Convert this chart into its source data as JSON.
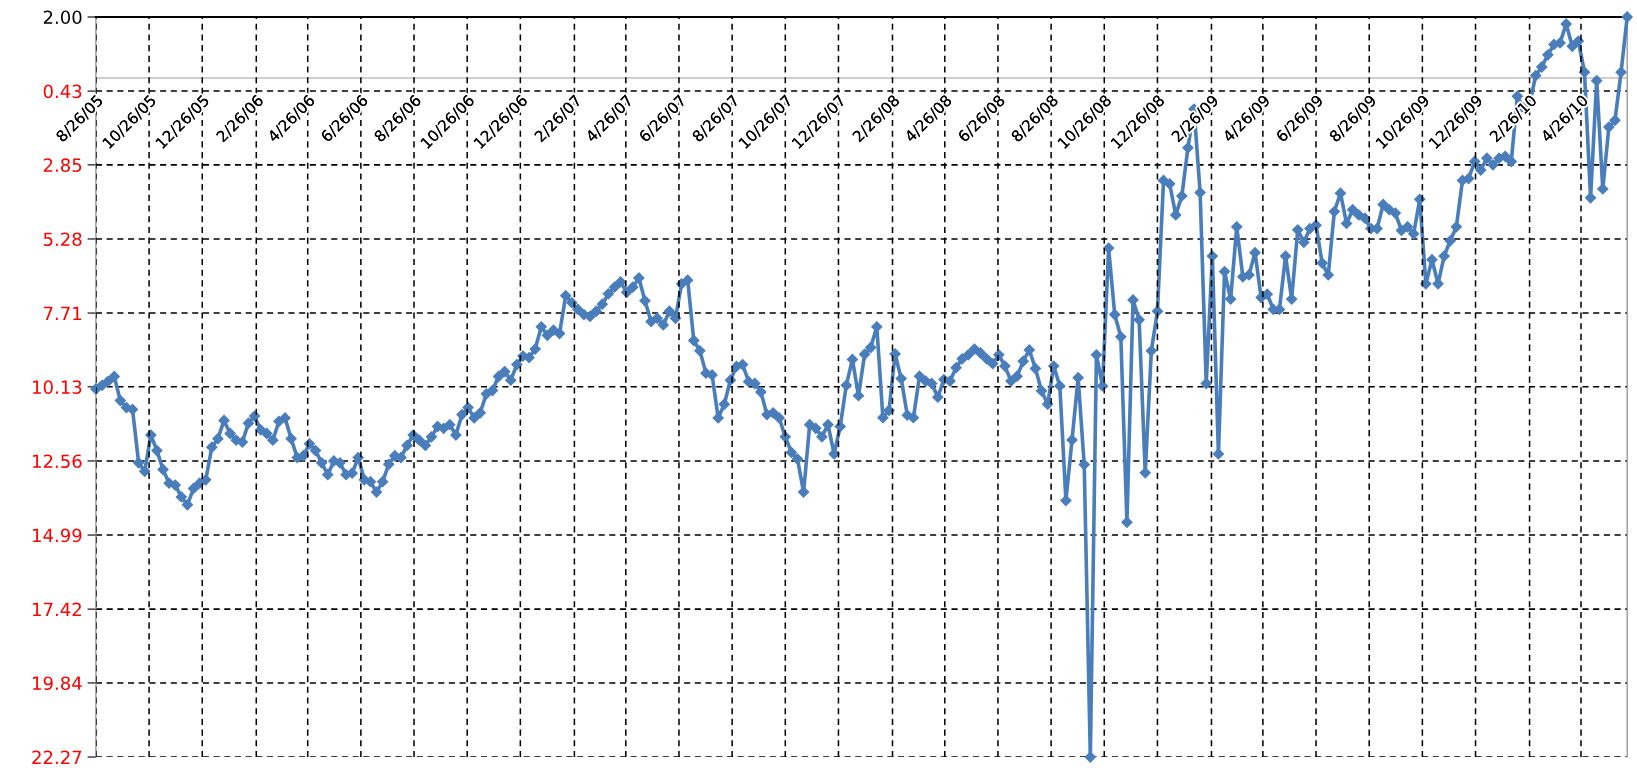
{
  "chart_data": {
    "type": "line",
    "xlim": [
      "2005-08-26",
      "2010-06-18"
    ],
    "xticks": [
      {
        "value": "2005-08-26",
        "label": "8/26/05"
      },
      {
        "value": "2005-10-26",
        "label": "10/26/05"
      },
      {
        "value": "2005-12-26",
        "label": "12/26/05"
      },
      {
        "value": "2006-02-26",
        "label": "2/26/06"
      },
      {
        "value": "2006-04-26",
        "label": "4/26/06"
      },
      {
        "value": "2006-06-26",
        "label": "6/26/06"
      },
      {
        "value": "2006-08-26",
        "label": "8/26/06"
      },
      {
        "value": "2006-10-26",
        "label": "10/26/06"
      },
      {
        "value": "2006-12-26",
        "label": "12/26/06"
      },
      {
        "value": "2007-02-26",
        "label": "2/26/07"
      },
      {
        "value": "2007-04-26",
        "label": "4/26/07"
      },
      {
        "value": "2007-06-26",
        "label": "6/26/07"
      },
      {
        "value": "2007-08-26",
        "label": "8/26/07"
      },
      {
        "value": "2007-10-26",
        "label": "10/26/07"
      },
      {
        "value": "2007-12-26",
        "label": "12/26/07"
      },
      {
        "value": "2008-02-26",
        "label": "2/26/08"
      },
      {
        "value": "2008-04-26",
        "label": "4/26/08"
      },
      {
        "value": "2008-06-26",
        "label": "6/26/08"
      },
      {
        "value": "2008-08-26",
        "label": "8/26/08"
      },
      {
        "value": "2008-10-26",
        "label": "10/26/08"
      },
      {
        "value": "2008-12-26",
        "label": "12/26/08"
      },
      {
        "value": "2009-02-26",
        "label": "2/26/09"
      },
      {
        "value": "2009-04-26",
        "label": "4/26/09"
      },
      {
        "value": "2009-06-26",
        "label": "6/26/09"
      },
      {
        "value": "2009-08-26",
        "label": "8/26/09"
      },
      {
        "value": "2009-10-26",
        "label": "10/26/09"
      },
      {
        "value": "2009-12-26",
        "label": "12/26/09"
      },
      {
        "value": "2010-02-26",
        "label": "2/26/10"
      },
      {
        "value": "2010-04-26",
        "label": "4/26/10"
      }
    ],
    "ylim": [
      -22.27,
      2.0
    ],
    "yticks": [
      {
        "value": 2.0,
        "label": "2.00"
      },
      {
        "value": -0.43,
        "label": "0.43"
      },
      {
        "value": -2.85,
        "label": "2.85"
      },
      {
        "value": -5.28,
        "label": "5.28"
      },
      {
        "value": -7.71,
        "label": "7.71"
      },
      {
        "value": -10.13,
        "label": "10.13"
      },
      {
        "value": -12.56,
        "label": "12.56"
      },
      {
        "value": -14.99,
        "label": "14.99"
      },
      {
        "value": -17.42,
        "label": "17.42"
      },
      {
        "value": -19.84,
        "label": "19.84"
      },
      {
        "value": -22.27,
        "label": "22.27"
      }
    ],
    "grid": true,
    "marker": "diamond",
    "line_style": "solid",
    "series": [
      {
        "color": "#4a7ebb",
        "x": [
          "2005-08-26",
          "2005-09-02",
          "2005-09-09",
          "2005-09-16",
          "2005-09-23",
          "2005-09-30",
          "2005-10-07",
          "2005-10-14",
          "2005-10-21",
          "2005-10-28",
          "2005-11-04",
          "2005-11-11",
          "2005-11-18",
          "2005-11-25",
          "2005-12-02",
          "2005-12-09",
          "2005-12-16",
          "2005-12-23",
          "2005-12-30",
          "2006-01-06",
          "2006-01-13",
          "2006-01-20",
          "2006-01-27",
          "2006-02-03",
          "2006-02-10",
          "2006-02-17",
          "2006-02-24",
          "2006-03-03",
          "2006-03-10",
          "2006-03-17",
          "2006-03-24",
          "2006-03-31",
          "2006-04-07",
          "2006-04-14",
          "2006-04-21",
          "2006-04-28",
          "2006-05-05",
          "2006-05-12",
          "2006-05-19",
          "2006-05-26",
          "2006-06-02",
          "2006-06-09",
          "2006-06-16",
          "2006-06-23",
          "2006-06-30",
          "2006-07-07",
          "2006-07-14",
          "2006-07-21",
          "2006-07-28",
          "2006-08-04",
          "2006-08-11",
          "2006-08-18",
          "2006-08-25",
          "2006-09-01",
          "2006-09-08",
          "2006-09-15",
          "2006-09-22",
          "2006-09-29",
          "2006-10-06",
          "2006-10-13",
          "2006-10-20",
          "2006-10-27",
          "2006-11-03",
          "2006-11-10",
          "2006-11-17",
          "2006-11-24",
          "2006-12-01",
          "2006-12-08",
          "2006-12-15",
          "2006-12-22",
          "2006-12-29",
          "2007-01-05",
          "2007-01-12",
          "2007-01-19",
          "2007-01-26",
          "2007-02-02",
          "2007-02-09",
          "2007-02-16",
          "2007-02-23",
          "2007-03-02",
          "2007-03-09",
          "2007-03-16",
          "2007-03-23",
          "2007-03-30",
          "2007-04-06",
          "2007-04-13",
          "2007-04-20",
          "2007-04-27",
          "2007-05-04",
          "2007-05-11",
          "2007-05-18",
          "2007-05-25",
          "2007-06-01",
          "2007-06-08",
          "2007-06-15",
          "2007-06-22",
          "2007-06-29",
          "2007-07-06",
          "2007-07-13",
          "2007-07-20",
          "2007-07-27",
          "2007-08-03",
          "2007-08-10",
          "2007-08-17",
          "2007-08-24",
          "2007-08-31",
          "2007-09-07",
          "2007-09-14",
          "2007-09-21",
          "2007-09-28",
          "2007-10-05",
          "2007-10-12",
          "2007-10-19",
          "2007-10-26",
          "2007-11-02",
          "2007-11-09",
          "2007-11-16",
          "2007-11-23",
          "2007-11-30",
          "2007-12-07",
          "2007-12-14",
          "2007-12-21",
          "2007-12-28",
          "2008-01-04",
          "2008-01-11",
          "2008-01-18",
          "2008-01-25",
          "2008-02-01",
          "2008-02-08",
          "2008-02-15",
          "2008-02-22",
          "2008-02-29",
          "2008-03-07",
          "2008-03-14",
          "2008-03-21",
          "2008-03-28",
          "2008-04-04",
          "2008-04-11",
          "2008-04-18",
          "2008-04-25",
          "2008-05-02",
          "2008-05-09",
          "2008-05-16",
          "2008-05-23",
          "2008-05-30",
          "2008-06-06",
          "2008-06-13",
          "2008-06-20",
          "2008-06-27",
          "2008-07-04",
          "2008-07-11",
          "2008-07-18",
          "2008-07-25",
          "2008-08-01",
          "2008-08-08",
          "2008-08-15",
          "2008-08-22",
          "2008-08-29",
          "2008-09-05",
          "2008-09-12",
          "2008-09-19",
          "2008-09-26",
          "2008-10-03",
          "2008-10-10",
          "2008-10-17",
          "2008-10-24",
          "2008-10-31",
          "2008-11-07",
          "2008-11-14",
          "2008-11-21",
          "2008-11-28",
          "2008-12-05",
          "2008-12-12",
          "2008-12-19",
          "2008-12-26",
          "2009-01-02",
          "2009-01-09",
          "2009-01-16",
          "2009-01-23",
          "2009-01-30",
          "2009-02-06",
          "2009-02-13",
          "2009-02-20",
          "2009-02-27",
          "2009-03-06",
          "2009-03-13",
          "2009-03-20",
          "2009-03-27",
          "2009-04-03",
          "2009-04-10",
          "2009-04-17",
          "2009-04-24",
          "2009-05-01",
          "2009-05-08",
          "2009-05-15",
          "2009-05-22",
          "2009-05-29",
          "2009-06-05",
          "2009-06-12",
          "2009-06-19",
          "2009-06-26",
          "2009-07-03",
          "2009-07-10",
          "2009-07-17",
          "2009-07-24",
          "2009-07-31",
          "2009-08-07",
          "2009-08-14",
          "2009-08-21",
          "2009-08-28",
          "2009-09-04",
          "2009-09-11",
          "2009-09-18",
          "2009-09-25",
          "2009-10-02",
          "2009-10-09",
          "2009-10-16",
          "2009-10-23",
          "2009-10-30",
          "2009-11-06",
          "2009-11-13",
          "2009-11-20",
          "2009-11-27",
          "2009-12-04",
          "2009-12-11",
          "2009-12-18",
          "2009-12-25",
          "2010-01-01",
          "2010-01-08",
          "2010-01-15",
          "2010-01-22",
          "2010-01-29",
          "2010-02-05",
          "2010-02-12",
          "2010-02-19",
          "2010-02-26",
          "2010-03-05",
          "2010-03-12",
          "2010-03-19",
          "2010-03-26",
          "2010-04-02",
          "2010-04-09",
          "2010-04-16",
          "2010-04-23",
          "2010-04-30",
          "2010-05-07",
          "2010-05-14",
          "2010-05-21",
          "2010-05-28",
          "2010-06-04",
          "2010-06-11",
          "2010-06-18"
        ],
        "values": [
          -10.2,
          -10.08,
          -9.95,
          -9.79,
          -10.58,
          -10.81,
          -10.87,
          -12.62,
          -12.9,
          -11.71,
          -12.22,
          -12.84,
          -13.29,
          -13.35,
          -13.74,
          -14.0,
          -13.46,
          -13.29,
          -13.18,
          -12.11,
          -11.83,
          -11.23,
          -11.66,
          -11.88,
          -11.94,
          -11.32,
          -11.09,
          -11.54,
          -11.66,
          -11.88,
          -11.26,
          -11.15,
          -11.83,
          -12.45,
          -12.39,
          -12.0,
          -12.22,
          -12.62,
          -13.01,
          -12.56,
          -12.62,
          -13.01,
          -12.96,
          -12.45,
          -13.18,
          -13.24,
          -13.58,
          -13.24,
          -12.67,
          -12.39,
          -12.45,
          -12.05,
          -11.71,
          -11.88,
          -12.05,
          -11.77,
          -11.43,
          -11.49,
          -11.37,
          -11.71,
          -11.04,
          -10.81,
          -11.15,
          -10.98,
          -10.36,
          -10.25,
          -9.79,
          -9.63,
          -9.91,
          -9.4,
          -9.12,
          -9.17,
          -8.89,
          -8.16,
          -8.44,
          -8.27,
          -8.38,
          -7.14,
          -7.37,
          -7.59,
          -7.76,
          -7.82,
          -7.65,
          -7.42,
          -7.08,
          -6.86,
          -6.69,
          -7.03,
          -6.86,
          -6.56,
          -7.31,
          -7.99,
          -7.88,
          -8.1,
          -7.65,
          -7.88,
          -6.75,
          -6.63,
          -8.61,
          -8.95,
          -9.68,
          -9.74,
          -11.15,
          -10.7,
          -9.91,
          -9.46,
          -9.4,
          -9.96,
          -10.02,
          -10.3,
          -11.04,
          -10.98,
          -11.15,
          -11.77,
          -12.28,
          -12.5,
          -13.58,
          -11.37,
          -11.49,
          -11.77,
          -11.37,
          -12.33,
          -11.43,
          -10.08,
          -9.23,
          -10.42,
          -9.06,
          -8.84,
          -8.16,
          -11.14,
          -10.9,
          -9.05,
          -9.86,
          -11.06,
          -11.14,
          -9.78,
          -9.94,
          -10.02,
          -10.47,
          -9.89,
          -9.94,
          -9.5,
          -9.21,
          -9.08,
          -8.89,
          -9.02,
          -9.21,
          -9.37,
          -9.08,
          -9.45,
          -9.94,
          -9.78,
          -9.29,
          -8.92,
          -9.53,
          -10.26,
          -10.7,
          -9.45,
          -10.1,
          -13.86,
          -11.87,
          -9.83,
          -12.68,
          -22.27,
          -9.08,
          -10.1,
          -5.58,
          -7.76,
          -8.49,
          -14.57,
          -7.28,
          -7.93,
          -12.95,
          -8.95,
          -7.65,
          -3.36,
          -3.47,
          -4.49,
          -3.87,
          -2.29,
          -1.02,
          -3.76,
          -10.02,
          -5.84,
          -12.33,
          -6.35,
          -7.25,
          -4.88,
          -6.52,
          -6.46,
          -5.73,
          -7.2,
          -7.09,
          -7.59,
          -7.59,
          -5.84,
          -7.25,
          -4.98,
          -5.39,
          -4.94,
          -4.83,
          -6.07,
          -6.46,
          -4.38,
          -3.78,
          -4.77,
          -4.32,
          -4.49,
          -4.6,
          -4.94,
          -4.94,
          -4.15,
          -4.32,
          -4.43,
          -5.0,
          -4.88,
          -5.11,
          -3.98,
          -6.75,
          -5.96,
          -6.75,
          -5.84,
          -5.34,
          -4.88,
          -3.36,
          -3.3,
          -2.74,
          -3.02,
          -2.63,
          -2.85,
          -2.63,
          -2.57,
          -2.74,
          -0.6,
          -0.99,
          -0.88,
          0.08,
          0.36,
          0.76,
          1.1,
          1.15,
          1.77,
          1.04,
          1.21,
          0.19,
          -3.93,
          -0.09,
          -3.64,
          -1.61,
          -1.39,
          0.19,
          2.0
        ]
      }
    ]
  }
}
